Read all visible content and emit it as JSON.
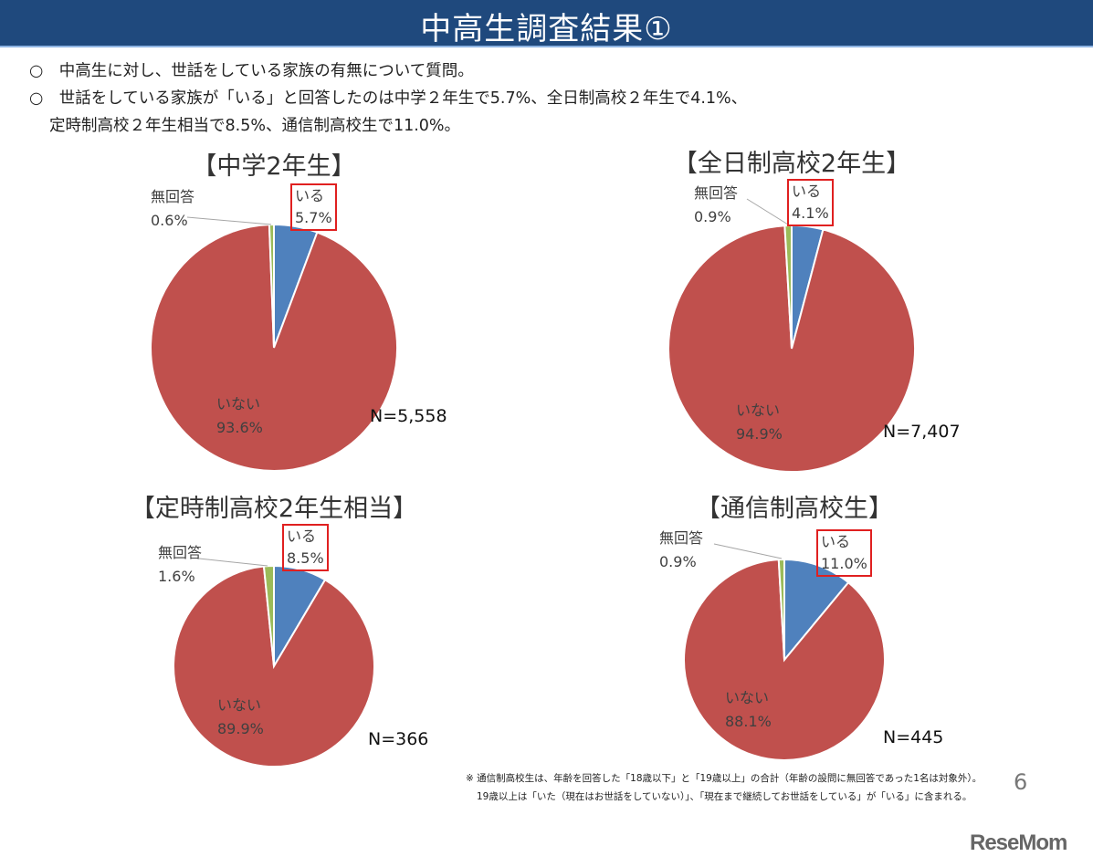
{
  "title": "中高生調査結果①",
  "bullets": [
    "○　中高生に対し、世話をしている家族の有無について質問。",
    "○　世話をしている家族が「いる」と回答したのは中学２年生で5.7%、全日制高校２年生で4.1%、",
    "定時制高校２年生相当で8.5%、通信制高校生で11.0%。"
  ],
  "chart_data": [
    {
      "type": "pie",
      "title": "【中学2年生】",
      "n_label": "N=5,558",
      "slices": [
        {
          "label": "いる",
          "value": 5.7,
          "text": "5.7%",
          "color": "#4f81bd"
        },
        {
          "label": "いない",
          "value": 93.6,
          "text": "93.6%",
          "color": "#c0504d"
        },
        {
          "label": "無回答",
          "value": 0.6,
          "text": "0.6%",
          "color": "#9bbb59"
        }
      ]
    },
    {
      "type": "pie",
      "title": "【全日制高校2年生】",
      "n_label": "N=7,407",
      "slices": [
        {
          "label": "いる",
          "value": 4.1,
          "text": "4.1%",
          "color": "#4f81bd"
        },
        {
          "label": "いない",
          "value": 94.9,
          "text": "94.9%",
          "color": "#c0504d"
        },
        {
          "label": "無回答",
          "value": 0.9,
          "text": "0.9%",
          "color": "#9bbb59"
        }
      ]
    },
    {
      "type": "pie",
      "title": "【定時制高校2年生相当】",
      "n_label": "N=366",
      "slices": [
        {
          "label": "いる",
          "value": 8.5,
          "text": "8.5%",
          "color": "#4f81bd"
        },
        {
          "label": "いない",
          "value": 89.9,
          "text": "89.9%",
          "color": "#c0504d"
        },
        {
          "label": "無回答",
          "value": 1.6,
          "text": "1.6%",
          "color": "#9bbb59"
        }
      ]
    },
    {
      "type": "pie",
      "title": "【通信制高校生】",
      "n_label": "N=445",
      "slices": [
        {
          "label": "いる",
          "value": 11.0,
          "text": "11.0%",
          "color": "#4f81bd"
        },
        {
          "label": "いない",
          "value": 88.1,
          "text": "88.1%",
          "color": "#c0504d"
        },
        {
          "label": "無回答",
          "value": 0.9,
          "text": "0.9%",
          "color": "#9bbb59"
        }
      ]
    }
  ],
  "footnotes": [
    "※  通信制高校生は、年齢を回答した「18歳以下」と「19歳以上」の合計（年齢の設問に無回答であった1名は対象外）。",
    "19歳以上は「いた（現在はお世話をしていない）」、「現在まで継続してお世話をしている」が「いる」に含まれる。"
  ],
  "page_number": "6",
  "logo": "ReseMom"
}
